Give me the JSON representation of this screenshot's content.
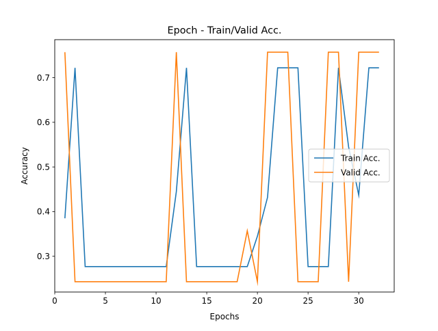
{
  "chart_data": {
    "type": "line",
    "title": "Epoch - Train/Valid Acc.",
    "xlabel": "Epochs",
    "ylabel": "Accuracy",
    "xlim": [
      0,
      33.5
    ],
    "ylim": [
      0.22,
      0.785
    ],
    "xticks": [
      0,
      5,
      10,
      15,
      20,
      25,
      30
    ],
    "yticks": [
      0.3,
      0.4,
      0.5,
      0.6,
      0.7
    ],
    "grid": false,
    "legend_position": "center-right",
    "x": [
      1,
      2,
      3,
      4,
      5,
      6,
      7,
      8,
      9,
      10,
      11,
      12,
      13,
      14,
      15,
      16,
      17,
      18,
      19,
      20,
      21,
      22,
      23,
      24,
      25,
      26,
      27,
      28,
      29,
      30,
      31,
      32
    ],
    "series": [
      {
        "name": "Train Acc.",
        "color": "#1f77b4",
        "values": [
          0.385,
          0.722,
          0.277,
          0.277,
          0.277,
          0.277,
          0.277,
          0.277,
          0.277,
          0.277,
          0.277,
          0.445,
          0.722,
          0.277,
          0.277,
          0.277,
          0.277,
          0.277,
          0.277,
          0.345,
          0.432,
          0.722,
          0.722,
          0.722,
          0.277,
          0.277,
          0.277,
          0.722,
          0.545,
          0.437,
          0.722,
          0.722
        ]
      },
      {
        "name": "Valid Acc.",
        "color": "#ff7f0e",
        "values": [
          0.757,
          0.243,
          0.243,
          0.243,
          0.243,
          0.243,
          0.243,
          0.243,
          0.243,
          0.243,
          0.243,
          0.757,
          0.243,
          0.243,
          0.243,
          0.243,
          0.243,
          0.243,
          0.357,
          0.243,
          0.757,
          0.757,
          0.757,
          0.243,
          0.243,
          0.243,
          0.757,
          0.757,
          0.243,
          0.757,
          0.757,
          0.757
        ]
      }
    ]
  }
}
